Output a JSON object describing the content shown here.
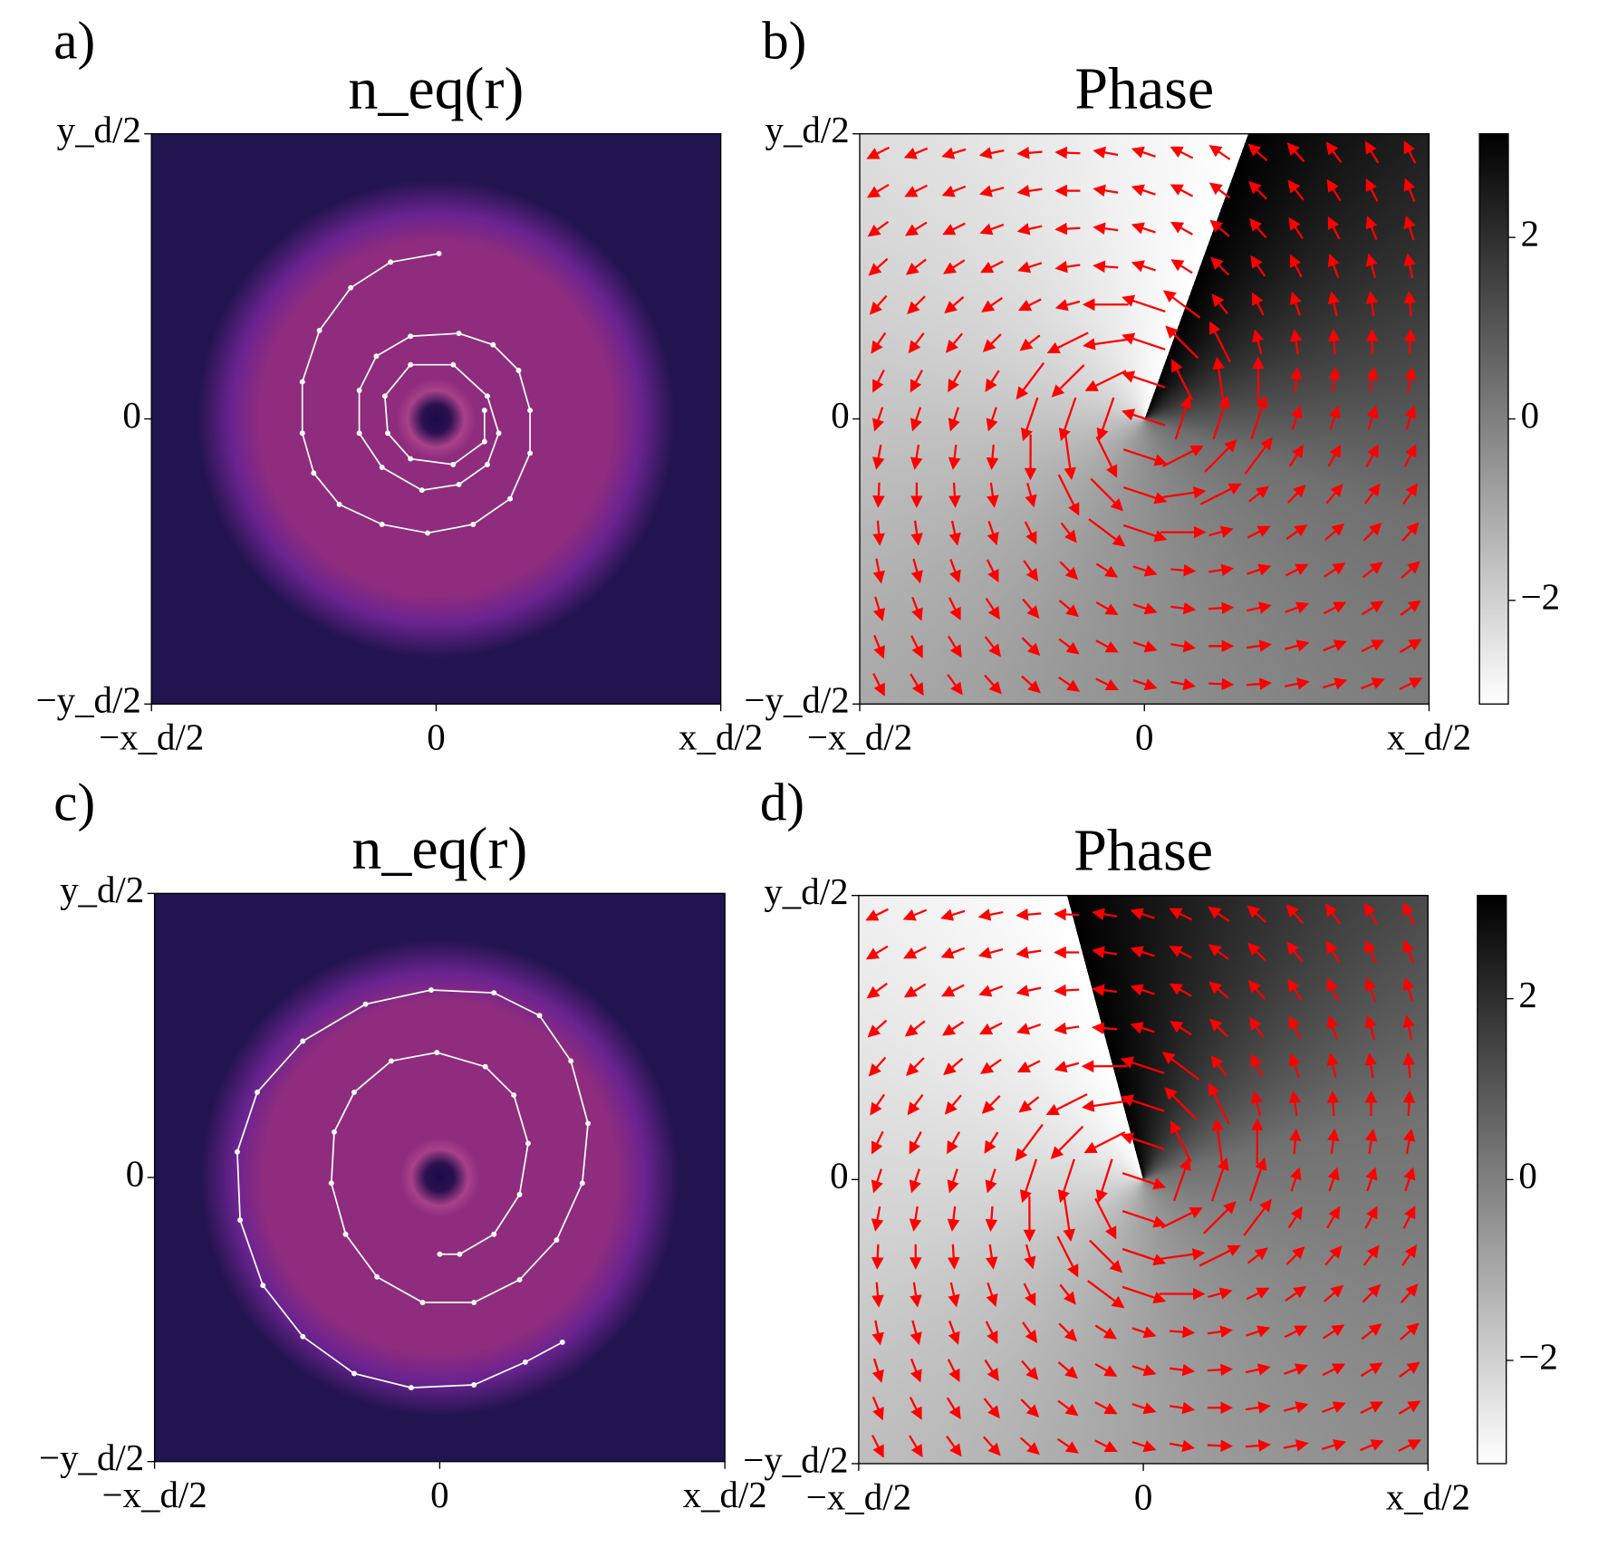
{
  "chart_data": [
    {
      "type": "heatmap",
      "panel_label": "a)",
      "title": "n_eq(r)",
      "colormap": "magma",
      "xlim": [
        -1,
        1
      ],
      "ylim": [
        -1,
        1
      ],
      "xticks": [
        {
          "value": -1,
          "label": "−x_d/2"
        },
        0,
        {
          "value": 1,
          "label": "x_d/2"
        }
      ],
      "yticks": [
        {
          "value": -1,
          "label": "−y_d/2"
        },
        0,
        {
          "value": 1,
          "label": "y_d/2"
        }
      ],
      "series": [
        {
          "color": "#ffffff",
          "x": [
            0.01,
            -0.16,
            -0.3,
            -0.41,
            -0.47,
            -0.47,
            -0.43,
            -0.34,
            -0.19,
            -0.03,
            0.13,
            0.26,
            0.33,
            0.33,
            0.29,
            0.2,
            0.08,
            -0.09,
            -0.21,
            -0.27,
            -0.27,
            -0.19,
            -0.05,
            0.08,
            0.18,
            0.22,
            0.18,
            0.06,
            -0.09,
            -0.18,
            -0.17,
            -0.09,
            0.06,
            0.17,
            0.17
          ],
          "y": [
            0.58,
            0.55,
            0.46,
            0.31,
            0.13,
            -0.05,
            -0.19,
            -0.3,
            -0.37,
            -0.4,
            -0.37,
            -0.28,
            -0.12,
            0.03,
            0.17,
            0.26,
            0.3,
            0.29,
            0.22,
            0.1,
            -0.05,
            -0.17,
            -0.25,
            -0.23,
            -0.16,
            -0.05,
            0.08,
            0.19,
            0.19,
            0.08,
            -0.05,
            -0.14,
            -0.16,
            -0.08,
            0.03
          ]
        }
      ]
    },
    {
      "type": "quiver",
      "panel_label": "b)",
      "title": "Phase",
      "colormap": "gray_r",
      "xlim": [
        -1,
        1
      ],
      "ylim": [
        -1,
        1
      ],
      "xticks": [
        {
          "value": -1,
          "label": "−x_d/2"
        },
        0,
        {
          "value": 1,
          "label": "x_d/2"
        }
      ],
      "yticks": [
        {
          "value": -1,
          "label": "−y_d/2"
        },
        0,
        {
          "value": 1,
          "label": "y_d/2"
        }
      ],
      "clim": [
        -3.14159,
        3.14159
      ],
      "cticks": [
        {
          "value": -2,
          "label": "−2"
        },
        0,
        2
      ],
      "arrow_color": "#ff0000"
    },
    {
      "type": "heatmap",
      "panel_label": "c)",
      "title": "n_eq(r)",
      "colormap": "magma",
      "xlim": [
        -1,
        1
      ],
      "ylim": [
        -1,
        1
      ],
      "xticks": [
        {
          "value": -1,
          "label": "−x_d/2"
        },
        0,
        {
          "value": 1,
          "label": "x_d/2"
        }
      ],
      "yticks": [
        {
          "value": -1,
          "label": "−y_d/2"
        },
        0,
        {
          "value": 1,
          "label": "y_d/2"
        }
      ],
      "series": [
        {
          "color": "#ffffff",
          "x": [
            0,
            0.07,
            0.19,
            0.28,
            0.31,
            0.26,
            0.16,
            -0.01,
            -0.17,
            -0.3,
            -0.37,
            -0.38,
            -0.33,
            -0.22,
            -0.06,
            0.12,
            0.28,
            0.41,
            0.5,
            0.52,
            0.46,
            0.35,
            0.19,
            -0.03,
            -0.26,
            -0.48,
            -0.64,
            -0.71,
            -0.7,
            -0.62,
            -0.48,
            -0.3,
            -0.1,
            0.12,
            0.3,
            0.43
          ],
          "y": [
            -0.27,
            -0.27,
            -0.2,
            -0.06,
            0.12,
            0.29,
            0.39,
            0.44,
            0.41,
            0.3,
            0.16,
            -0.02,
            -0.2,
            -0.35,
            -0.44,
            -0.44,
            -0.36,
            -0.22,
            -0.02,
            0.19,
            0.41,
            0.57,
            0.65,
            0.66,
            0.61,
            0.48,
            0.3,
            0.09,
            -0.15,
            -0.38,
            -0.56,
            -0.69,
            -0.74,
            -0.73,
            -0.65,
            -0.58
          ]
        }
      ]
    },
    {
      "type": "quiver",
      "panel_label": "d)",
      "title": "Phase",
      "colormap": "gray_r",
      "xlim": [
        -1,
        1
      ],
      "ylim": [
        -1,
        1
      ],
      "xticks": [
        {
          "value": -1,
          "label": "−x_d/2"
        },
        0,
        {
          "value": 1,
          "label": "x_d/2"
        }
      ],
      "yticks": [
        {
          "value": -1,
          "label": "−y_d/2"
        },
        0,
        {
          "value": 1,
          "label": "y_d/2"
        }
      ],
      "clim": [
        -3.14159,
        3.14159
      ],
      "cticks": [
        {
          "value": -2,
          "label": "−2"
        },
        0,
        2
      ],
      "arrow_color": "#ff0000"
    }
  ]
}
